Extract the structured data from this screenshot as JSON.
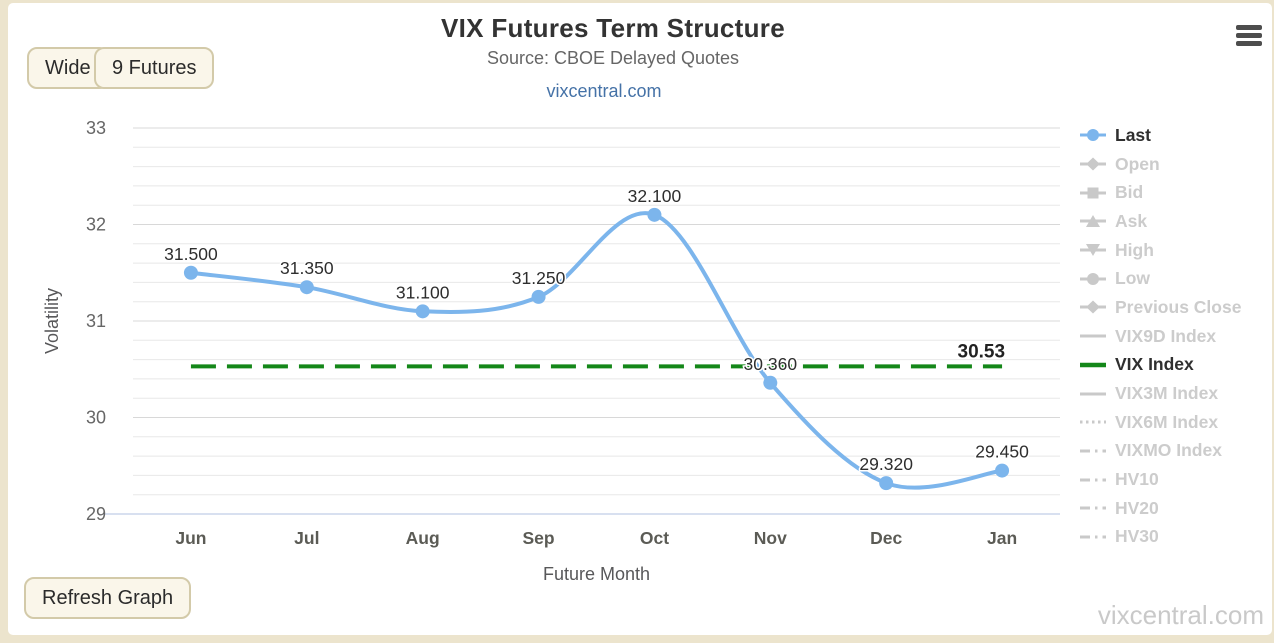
{
  "header": {
    "title": "VIX Futures Term Structure",
    "subtitle": "Source: CBOE Delayed Quotes",
    "link": "vixcentral.com"
  },
  "toolbar": {
    "wide_label": "Wide",
    "futures_label": "9 Futures",
    "refresh_label": "Refresh Graph"
  },
  "watermark": "vixcentral.com",
  "colors": {
    "accent_blue": "#7cb5ec",
    "accent_green": "#148719",
    "link_blue": "#4572a7",
    "inactive_legend": "#c9c9c9",
    "axis_line": "#ccd6eb",
    "grid_major": "#d8d8d8",
    "grid_minor": "#e8e8e8",
    "label_dark": "#2e2e2e",
    "axis_text": "#666666",
    "axis_title_text": "#58585a"
  },
  "chart_data": {
    "type": "line",
    "title": "VIX Futures Term Structure",
    "subtitle": "Source: CBOE Delayed Quotes",
    "xlabel": "Future Month",
    "ylabel": "Volatility",
    "categories": [
      "Jun",
      "Jul",
      "Aug",
      "Sep",
      "Oct",
      "Nov",
      "Dec",
      "Jan"
    ],
    "ylim": [
      29,
      33
    ],
    "y_ticks": [
      "33",
      "32",
      "31",
      "30",
      "29"
    ],
    "minor_tick_step": 0.2,
    "grid": true,
    "legend_position": "right",
    "series": [
      {
        "name": "Last",
        "type": "spline",
        "color": "#7cb5ec",
        "values": [
          31.5,
          31.35,
          31.1,
          31.25,
          32.1,
          30.36,
          29.32,
          29.45
        ],
        "point_labels": [
          "31.500",
          "31.350",
          "31.100",
          "31.250",
          "32.100",
          "30.360",
          "29.320",
          "29.450"
        ]
      },
      {
        "name": "VIX Index",
        "type": "dashed-horizontal-line",
        "color": "#148719",
        "value": 30.53,
        "end_label": "30.53"
      }
    ]
  },
  "legend": {
    "items": [
      {
        "label": "Last",
        "active": true,
        "marker": "circle",
        "color": "#7cb5ec"
      },
      {
        "label": "Open",
        "active": false,
        "marker": "diamond"
      },
      {
        "label": "Bid",
        "active": false,
        "marker": "square"
      },
      {
        "label": "Ask",
        "active": false,
        "marker": "triangle-up"
      },
      {
        "label": "High",
        "active": false,
        "marker": "triangle-down"
      },
      {
        "label": "Low",
        "active": false,
        "marker": "circle"
      },
      {
        "label": "Previous Close",
        "active": false,
        "marker": "diamond"
      },
      {
        "label": "VIX9D Index",
        "active": false,
        "marker": "line"
      },
      {
        "label": "VIX Index",
        "active": true,
        "marker": "thick-line",
        "color": "#148719"
      },
      {
        "label": "VIX3M Index",
        "active": false,
        "marker": "line"
      },
      {
        "label": "VIX6M Index",
        "active": false,
        "marker": "dotted-line"
      },
      {
        "label": "VIXMO Index",
        "active": false,
        "marker": "dash-dot-line"
      },
      {
        "label": "HV10",
        "active": false,
        "marker": "dash-dot-line"
      },
      {
        "label": "HV20",
        "active": false,
        "marker": "dash-dot-line"
      },
      {
        "label": "HV30",
        "active": false,
        "marker": "dash-dot-line"
      }
    ]
  }
}
